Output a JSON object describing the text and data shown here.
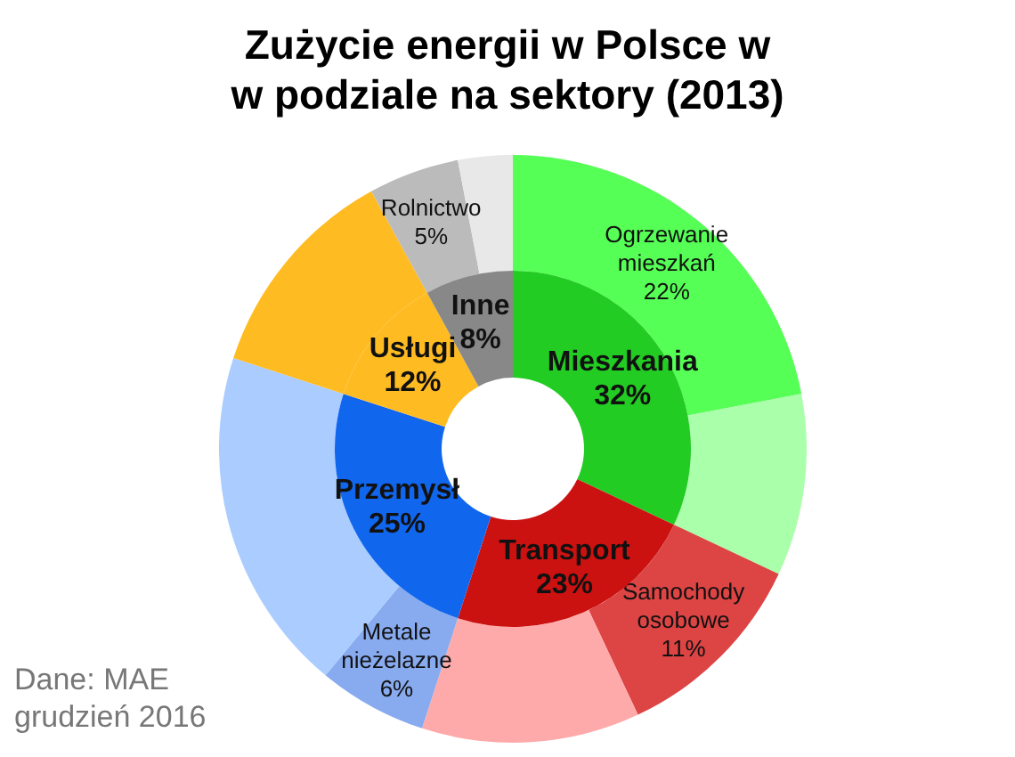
{
  "chart_data": [
    {
      "type": "donut",
      "title": "Zużycie energii w Polsce w\nw podziale na sektory (2013)",
      "data_labels": true,
      "legend": false,
      "annotations": [
        "Dane: MAE\ngrudzień 2016"
      ],
      "categories": [
        "Mieszkania",
        "Transport",
        "Przemysł",
        "Usługi",
        "Inne"
      ],
      "values": [
        32,
        23,
        25,
        12,
        8
      ],
      "value_labels": [
        "32%",
        "23%",
        "25%",
        "12%",
        "8%"
      ],
      "colors": [
        "#22cc22",
        "#cc1111",
        "#1166ee",
        "#ffbb22",
        "#888888"
      ]
    },
    {
      "type": "donut",
      "data_labels": true,
      "legend": false,
      "categories": [
        "Ogrzewanie\nmieszkań",
        null,
        "Samochody\nosobowe",
        null,
        "Metale\nnieżelazne",
        null,
        null,
        "Rolnictwo",
        null
      ],
      "values": [
        22,
        10,
        11,
        12,
        6,
        19,
        12,
        5,
        3
      ],
      "value_labels": [
        "22%",
        null,
        "11%",
        null,
        "6%",
        null,
        null,
        "5%",
        null
      ],
      "colors": [
        "#55ff55",
        "#aaffaa",
        "#dd4444",
        "#ffaaaa",
        "#88aaee",
        "#aaccff",
        "#ffbb22",
        "#bbbbbb",
        "#e8e8e8"
      ]
    }
  ]
}
